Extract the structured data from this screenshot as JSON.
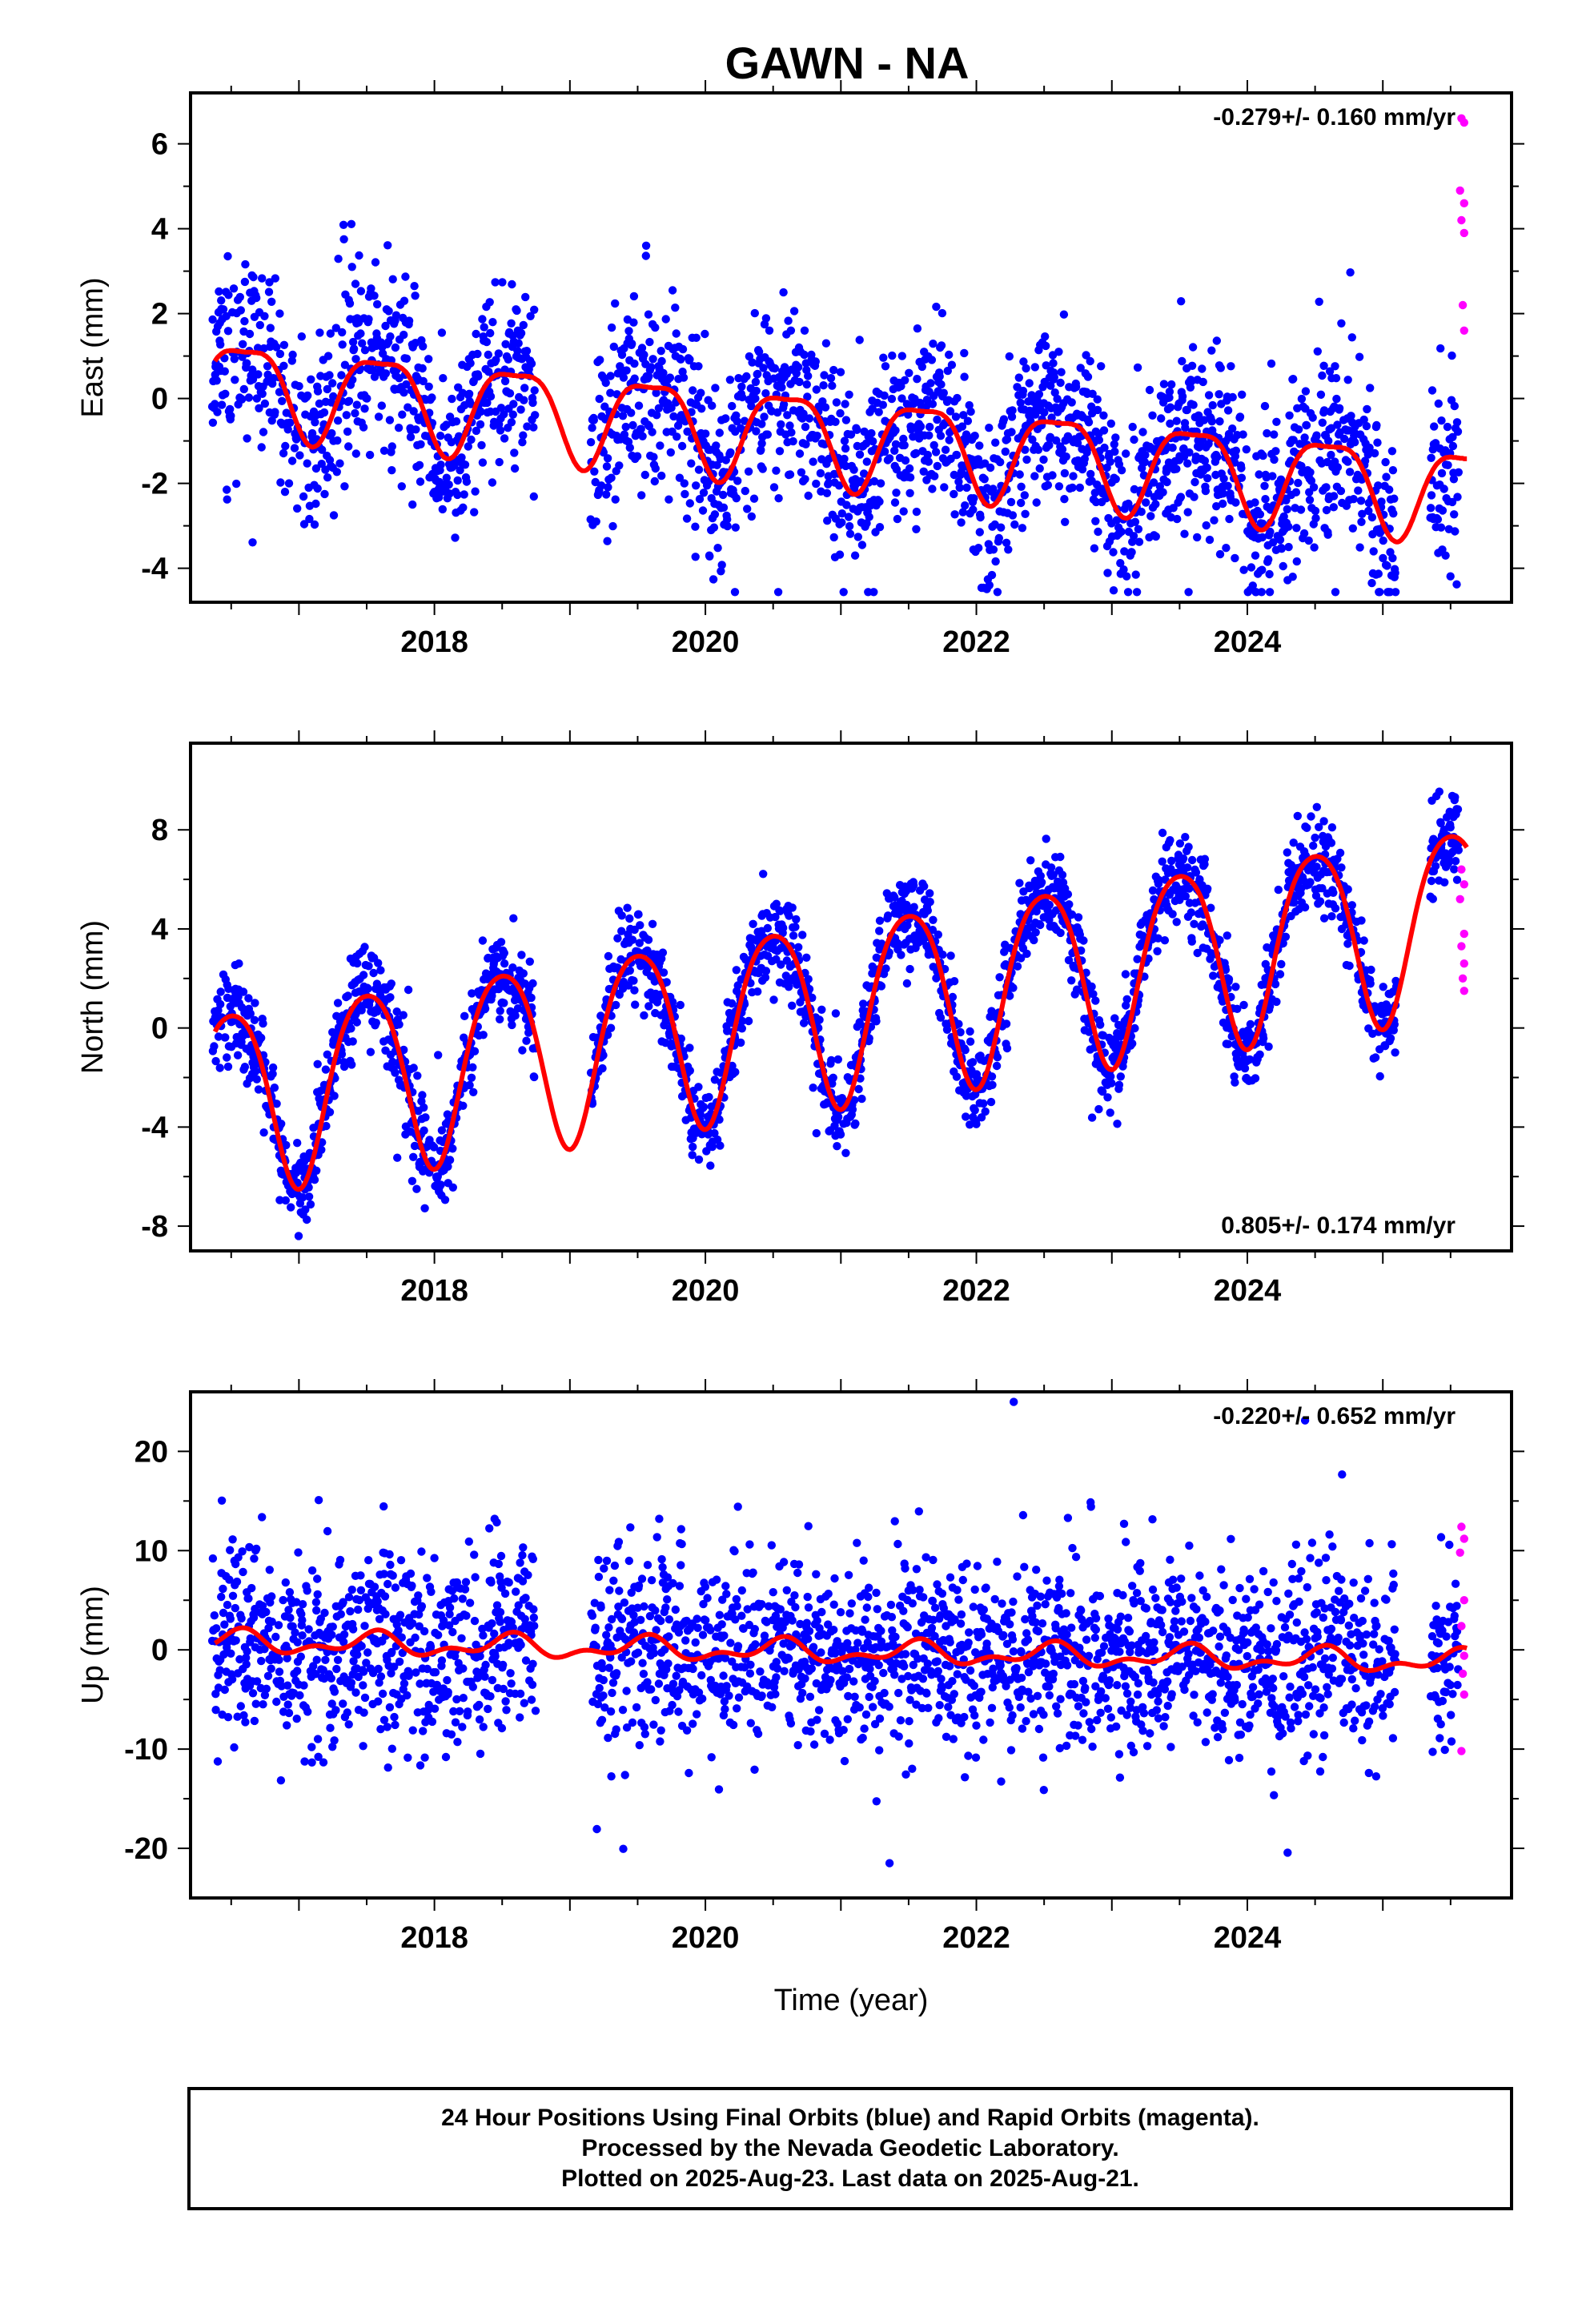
{
  "title": "GAWN - NA",
  "chart_data": [
    {
      "type": "scatter",
      "panel": "east",
      "ylabel": "East (mm)",
      "xlabel": "",
      "ylim": [
        -4.8,
        7.2
      ],
      "xlim": [
        2016.2,
        2025.95
      ],
      "yticks": [
        -4,
        -2,
        0,
        2,
        4,
        6
      ],
      "xticks": [
        2018,
        2020,
        2022,
        2024
      ],
      "rate": "-0.279+/- 0.160 mm/yr",
      "rate_position": "top-right",
      "model": {
        "offset": 0.4,
        "rate": -0.279,
        "t0": 2016.4,
        "ann_amp": 1.05,
        "ann_peak": 0.6,
        "semi_amp": 0.3,
        "semi_peak": 0.35
      },
      "gaps": [
        [
          2018.75,
          2019.15
        ],
        [
          2025.1,
          2025.35
        ]
      ],
      "noise_sd": 1.1,
      "seed": 11,
      "series": [
        {
          "color": "#0000ff",
          "values": []
        },
        {
          "color": "#ff00ff",
          "values": [
            [
              2025.58,
              6.6
            ],
            [
              2025.6,
              6.5
            ],
            [
              2025.57,
              4.9
            ],
            [
              2025.6,
              4.6
            ],
            [
              2025.58,
              4.2
            ],
            [
              2025.6,
              3.9
            ],
            [
              2025.59,
              2.2
            ],
            [
              2025.6,
              1.6
            ]
          ]
        },
        {
          "color": "#ff0000",
          "values": []
        }
      ]
    },
    {
      "type": "scatter",
      "panel": "north",
      "ylabel": "North (mm)",
      "xlabel": "",
      "ylim": [
        -9.0,
        11.5
      ],
      "xlim": [
        2016.2,
        2025.95
      ],
      "yticks": [
        -8,
        -4,
        0,
        4,
        8
      ],
      "xticks": [
        2018,
        2020,
        2022,
        2024
      ],
      "rate": "0.805+/- 0.174 mm/yr",
      "rate_position": "bottom-right",
      "model": {
        "offset": -2.8,
        "rate": 0.805,
        "t0": 2016.4,
        "ann_amp": 3.7,
        "ann_peak": 0.5,
        "semi_amp": 0.5,
        "semi_peak": 0.25
      },
      "gaps": [
        [
          2018.75,
          2019.15
        ],
        [
          2025.1,
          2025.35
        ]
      ],
      "noise_sd": 0.9,
      "seed": 23,
      "series": [
        {
          "color": "#0000ff",
          "values": []
        },
        {
          "color": "#ff00ff",
          "values": [
            [
              2025.58,
              6.4
            ],
            [
              2025.6,
              5.8
            ],
            [
              2025.57,
              5.2
            ],
            [
              2025.6,
              3.8
            ],
            [
              2025.58,
              3.3
            ],
            [
              2025.6,
              2.6
            ],
            [
              2025.59,
              2.0
            ],
            [
              2025.6,
              1.5
            ]
          ]
        },
        {
          "color": "#ff0000",
          "values": []
        }
      ]
    },
    {
      "type": "scatter",
      "panel": "up",
      "ylabel": "Up (mm)",
      "xlabel": "Time (year)",
      "ylim": [
        -25,
        26
      ],
      "xlim": [
        2016.2,
        2025.95
      ],
      "yticks": [
        -20,
        -10,
        0,
        10,
        20
      ],
      "xticks": [
        2018,
        2020,
        2022,
        2024
      ],
      "rate": "-0.220+/- 0.652 mm/yr",
      "rate_position": "top-right",
      "model": {
        "offset": 0.8,
        "rate": -0.22,
        "t0": 2016.4,
        "ann_amp": 0.9,
        "ann_peak": 0.55,
        "semi_amp": 0.6,
        "semi_peak": 0.1
      },
      "gaps": [
        [
          2018.75,
          2019.15
        ],
        [
          2025.1,
          2025.35
        ]
      ],
      "noise_sd": 4.8,
      "seed": 37,
      "series": [
        {
          "color": "#0000ff",
          "values": []
        },
        {
          "color": "#ff00ff",
          "values": [
            [
              2025.58,
              12.4
            ],
            [
              2025.6,
              11.2
            ],
            [
              2025.57,
              9.8
            ],
            [
              2025.6,
              5.0
            ],
            [
              2025.58,
              2.4
            ],
            [
              2025.6,
              -0.6
            ],
            [
              2025.59,
              -2.4
            ],
            [
              2025.6,
              -4.5
            ],
            [
              2025.58,
              -10.2
            ]
          ]
        },
        {
          "color": "#ff0000",
          "values": []
        }
      ]
    }
  ],
  "footer": {
    "line1": "24 Hour Positions Using Final Orbits (blue) and Rapid Orbits (magenta).",
    "line2": "Processed by the Nevada Geodetic Laboratory.",
    "line3": "Plotted on 2025-Aug-23. Last data on 2025-Aug-21."
  }
}
